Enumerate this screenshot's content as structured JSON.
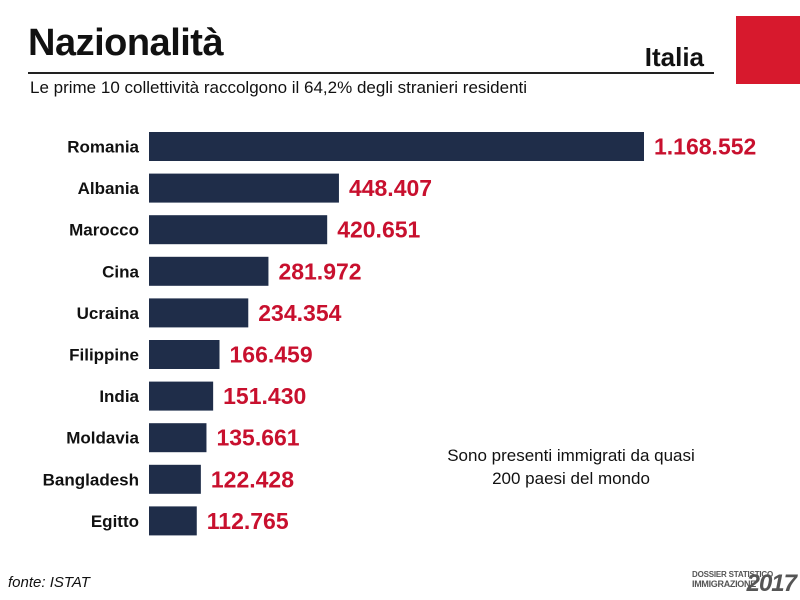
{
  "header": {
    "title": "Nazionalità",
    "country": "Italia",
    "subtitle": "Le prime 10 collettività raccolgono il 64,2% degli stranieri residenti"
  },
  "note": {
    "line1": "Sono presenti immigrati da quasi",
    "line2": "200 paesi del mondo"
  },
  "footer": {
    "source": "fonte: ISTAT",
    "logo_top": "DOSSIER STATISTICO",
    "logo_mid": "IMMIGRAZIONE",
    "logo_year": "2017"
  },
  "colors": {
    "bar": "#1f2d49",
    "value": "#c8102e",
    "accent": "#d7192d"
  },
  "chart_data": {
    "type": "bar",
    "orientation": "horizontal",
    "categories": [
      "Romania",
      "Albania",
      "Marocco",
      "Cina",
      "Ucraina",
      "Filippine",
      "India",
      "Moldavia",
      "Bangladesh",
      "Egitto"
    ],
    "values": [
      1168552,
      448407,
      420651,
      281972,
      234354,
      166459,
      151430,
      135661,
      122428,
      112765
    ],
    "value_labels": [
      "1.168.552",
      "448.407",
      "420.651",
      "281.972",
      "234.354",
      "166.459",
      "151.430",
      "135.661",
      "122.428",
      "112.765"
    ],
    "title": "",
    "xlabel": "",
    "ylabel": "",
    "grid": false
  }
}
